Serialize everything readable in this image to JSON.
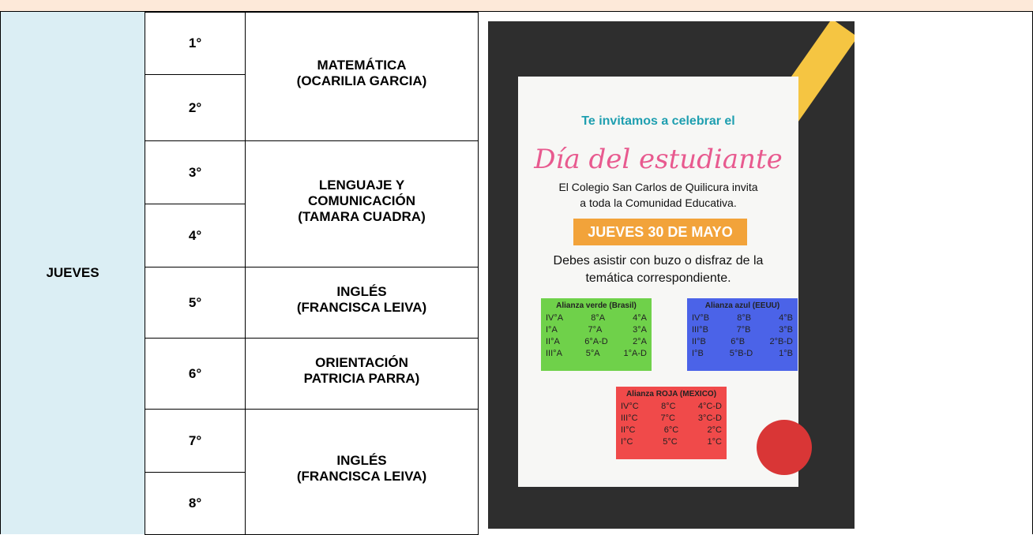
{
  "table": {
    "day": "JUEVES",
    "groups": [
      {
        "grades": [
          "1°",
          "2°"
        ],
        "subject": [
          "MATEMÁTICA",
          "(OCARILIA GARCIA)"
        ]
      },
      {
        "grades": [
          "3°",
          "4°"
        ],
        "subject": [
          "LENGUAJE Y",
          "COMUNICACIÓN",
          "(TAMARA CUADRA)"
        ]
      },
      {
        "grades": [
          "5°"
        ],
        "subject": [
          "INGLÉS",
          "(FRANCISCA LEIVA)"
        ]
      },
      {
        "grades": [
          "6°"
        ],
        "subject": [
          "ORIENTACIÓN",
          "PATRICIA PARRA)"
        ]
      },
      {
        "grades": [
          "7°",
          "8°"
        ],
        "subject": [
          "INGLÉS",
          "(FRANCISCA LEIVA)"
        ]
      }
    ]
  },
  "poster": {
    "invite": "Te invitamos a celebrar el",
    "headline": "Día del estudiante",
    "intro": [
      "El Colegio San Carlos de Quilicura invita",
      "a toda la Comunidad Educativa."
    ],
    "date": "JUEVES 30 DE MAYO",
    "dress": [
      "Debes asistir con buzo o disfraz de la",
      "temática correspondiente."
    ],
    "alliances": [
      {
        "name": "Alianza verde (Brasil)",
        "rows": [
          [
            "IV°A",
            "8°A",
            "4°A"
          ],
          [
            "I°A",
            "7°A",
            "3°A"
          ],
          [
            "II°A",
            "6°A-D",
            "2°A"
          ],
          [
            "III°A",
            "5°A",
            "1°A-D"
          ]
        ]
      },
      {
        "name": "Alianza azul (EEUU)",
        "rows": [
          [
            "IV°B",
            "8°B",
            "4°B"
          ],
          [
            "III°B",
            "7°B",
            "3°B"
          ],
          [
            "II°B",
            "6°B",
            "2°B-D"
          ],
          [
            "I°B",
            "5°B-D",
            "1°B"
          ]
        ]
      },
      {
        "name": "Alianza ROJA (MEXICO)",
        "rows": [
          [
            "IV°C",
            "8°C",
            "4°C-D"
          ],
          [
            "III°C",
            "7°C",
            "3°C-D"
          ],
          [
            "II°C",
            "6°C",
            "2°C"
          ],
          [
            "I°C",
            "5°C",
            "1°C"
          ]
        ]
      }
    ]
  }
}
